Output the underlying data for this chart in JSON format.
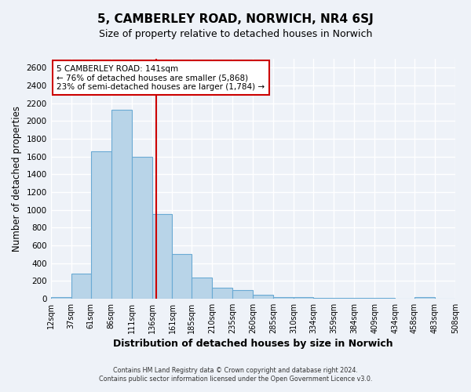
{
  "title": "5, CAMBERLEY ROAD, NORWICH, NR4 6SJ",
  "subtitle": "Size of property relative to detached houses in Norwich",
  "xlabel": "Distribution of detached houses by size in Norwich",
  "ylabel": "Number of detached properties",
  "bar_color": "#b8d4e8",
  "bar_edge_color": "#6aaad4",
  "background_color": "#eef2f8",
  "grid_color": "#ffffff",
  "bin_labels": [
    "12sqm",
    "37sqm",
    "61sqm",
    "86sqm",
    "111sqm",
    "136sqm",
    "161sqm",
    "185sqm",
    "210sqm",
    "235sqm",
    "260sqm",
    "285sqm",
    "310sqm",
    "334sqm",
    "359sqm",
    "384sqm",
    "409sqm",
    "434sqm",
    "458sqm",
    "483sqm",
    "508sqm"
  ],
  "bar_heights": [
    20,
    285,
    1660,
    2130,
    1600,
    950,
    500,
    240,
    120,
    95,
    40,
    20,
    15,
    10,
    5,
    5,
    3,
    2,
    15,
    2,
    0
  ],
  "ylim": [
    0,
    2700
  ],
  "yticks": [
    0,
    200,
    400,
    600,
    800,
    1000,
    1200,
    1400,
    1600,
    1800,
    2000,
    2200,
    2400,
    2600
  ],
  "property_line_x": 141,
  "property_line_color": "#cc0000",
  "annotation_title": "5 CAMBERLEY ROAD: 141sqm",
  "annotation_line1": "← 76% of detached houses are smaller (5,868)",
  "annotation_line2": "23% of semi-detached houses are larger (1,784) →",
  "annotation_box_facecolor": "#ffffff",
  "annotation_box_edgecolor": "#cc0000",
  "footer1": "Contains HM Land Registry data © Crown copyright and database right 2024.",
  "footer2": "Contains public sector information licensed under the Open Government Licence v3.0.",
  "bin_edges": [
    12,
    37,
    61,
    86,
    111,
    136,
    161,
    185,
    210,
    235,
    260,
    285,
    310,
    334,
    359,
    384,
    409,
    434,
    458,
    483,
    508
  ]
}
